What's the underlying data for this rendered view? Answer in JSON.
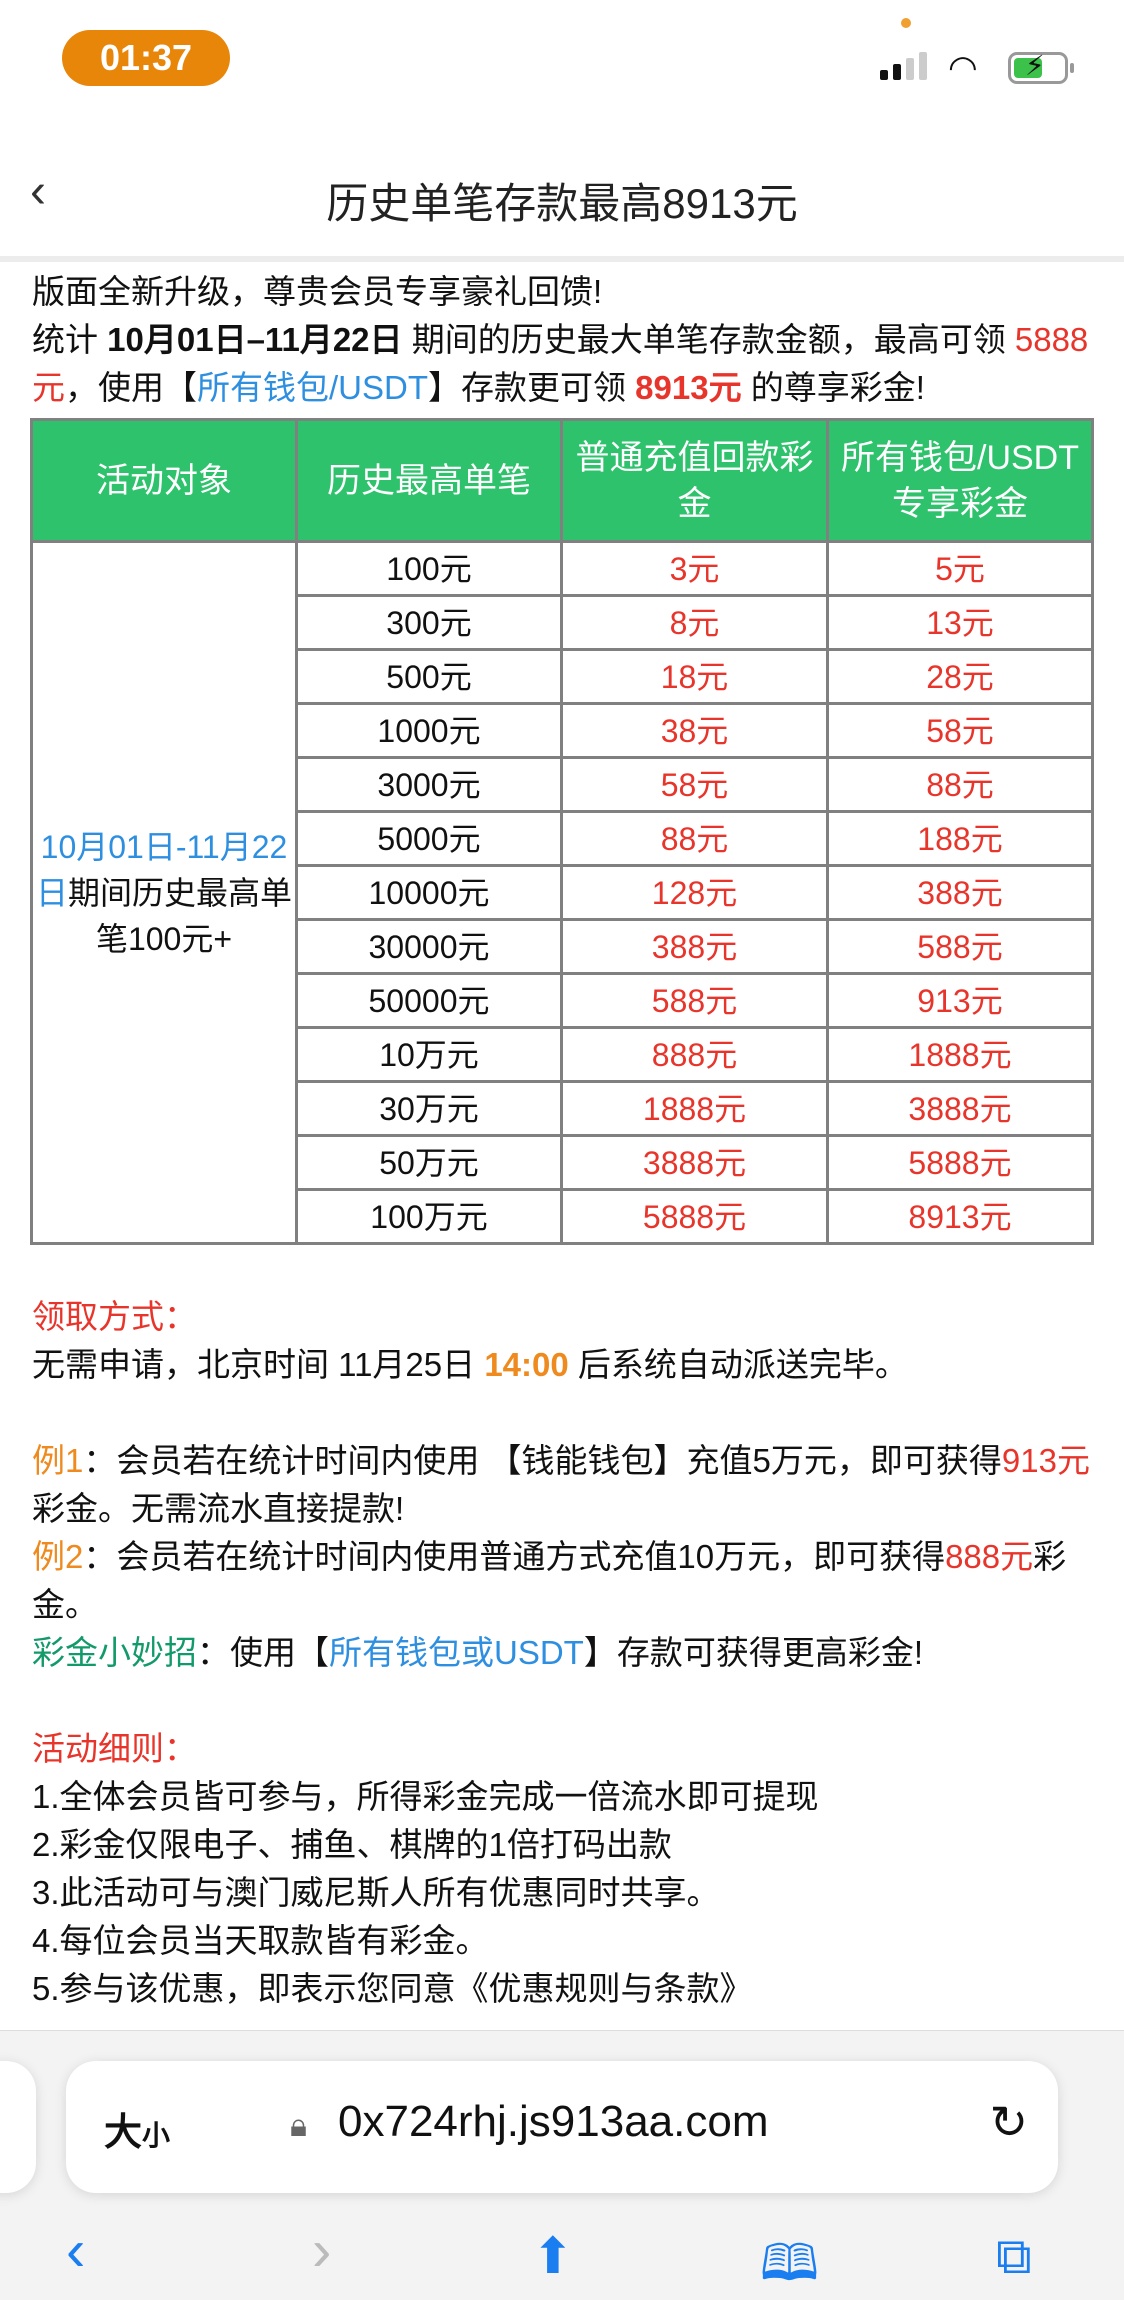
{
  "status_bar": {
    "time": "01:37"
  },
  "nav": {
    "back_icon": "chevron-left-icon",
    "title": "历史单笔存款最高8913元"
  },
  "intro": {
    "line1": "版面全新升级，尊贵会员专享豪礼回馈!",
    "p1": "统计 ",
    "range": "10月01日–11月22日",
    "p2": " 期间的历史最大单笔存款金额，最高可领 ",
    "amt1": "5888元",
    "p3": "，使用【",
    "wallet": "所有钱包/USDT",
    "p4": "】存款更可领 ",
    "amt2": "8913元",
    "p5": " 的尊享彩金!"
  },
  "table": {
    "headers": [
      "活动对象",
      "历史最高单笔",
      "普通充值回款彩金",
      "所有钱包/USDT专享彩金"
    ],
    "target_blue": "10月01日-11月22日",
    "target_black": "期间历史最高单笔100元+",
    "rows": [
      [
        "100元",
        "3元",
        "5元"
      ],
      [
        "300元",
        "8元",
        "13元"
      ],
      [
        "500元",
        "18元",
        "28元"
      ],
      [
        "1000元",
        "38元",
        "58元"
      ],
      [
        "3000元",
        "58元",
        "88元"
      ],
      [
        "5000元",
        "88元",
        "188元"
      ],
      [
        "10000元",
        "128元",
        "388元"
      ],
      [
        "30000元",
        "388元",
        "588元"
      ],
      [
        "50000元",
        "588元",
        "913元"
      ],
      [
        "10万元",
        "888元",
        "1888元"
      ],
      [
        "30万元",
        "1888元",
        "3888元"
      ],
      [
        "50万元",
        "3888元",
        "5888元"
      ],
      [
        "100万元",
        "5888元",
        "8913元"
      ]
    ]
  },
  "claim": {
    "heading": "领取方式：",
    "t1": "无需申请，北京时间 11月25日 ",
    "time": "14:00",
    "t2": " 后系统自动派送完毕。"
  },
  "examples": {
    "e1_label": "例1",
    "e1_a": "：会员若在统计时间内使用 【钱能钱包】充值5万元，即可获得",
    "e1_amt": "913元",
    "e1_b": "彩金。无需流水直接提款!",
    "e2_label": "例2",
    "e2_a": "：会员若在统计时间内使用普通方式充值10万元，即可获得",
    "e2_amt": "888元",
    "e2_b": "彩金。",
    "tip_label": "彩金小妙招",
    "tip_a": "：使用【",
    "tip_wallet": "所有钱包或USDT",
    "tip_b": "】存款可获得更高彩金!"
  },
  "rules": {
    "heading": "活动细则：",
    "items": [
      "1.全体会员皆可参与，所得彩金完成一倍流水即可提现",
      "2.彩金仅限电子、捕鱼、棋牌的1倍打码出款",
      "3.此活动可与澳门威尼斯人所有优惠同时共享。",
      "4.每位会员当天取款皆有彩金。",
      "5.参与该优惠，即表示您同意《优惠规则与条款》"
    ]
  },
  "browser": {
    "text_size_big": "大",
    "text_size_small": "小",
    "url": "0x724rhj.js913aa.com"
  },
  "colors": {
    "header_green": "#2DC26B",
    "red": "#E8352B",
    "blue": "#2E8FE0",
    "orange": "#EE8A1E",
    "green": "#139a6a",
    "time_pill": "#E8860A"
  }
}
